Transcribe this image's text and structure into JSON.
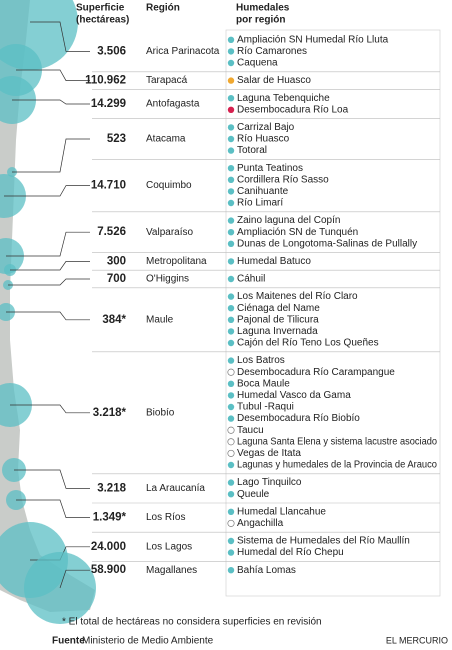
{
  "header": {
    "surface": [
      "Superficie",
      "(hectáreas)"
    ],
    "region": "Región",
    "wetlands": [
      "Humedales",
      "por región"
    ]
  },
  "rows": [
    {
      "surface": "3.506",
      "region": "Arica Parinacota",
      "wetlands": [
        "Ampliación SN Humedal Río Lluta",
        "Río Camarones",
        "Caquena"
      ],
      "bullets": [
        "#5bbfc4",
        "#5bbfc4",
        "#5bbfc4"
      ]
    },
    {
      "surface": "110.962",
      "region": "Tarapacá",
      "wetlands": [
        "Salar de Huasco"
      ],
      "bullets": [
        "#f0a830"
      ]
    },
    {
      "surface": "14.299",
      "region": "Antofagasta",
      "wetlands": [
        "Laguna Tebenquiche",
        "Desembocadura Río Loa"
      ],
      "bullets": [
        "#5bbfc4",
        "#d6204f"
      ]
    },
    {
      "surface": "523",
      "region": "Atacama",
      "wetlands": [
        "Carrizal Bajo",
        "Río Huasco",
        "Totoral"
      ],
      "bullets": [
        "#5bbfc4",
        "#5bbfc4",
        "#5bbfc4"
      ]
    },
    {
      "surface": "14.710",
      "region": "Coquimbo",
      "wetlands": [
        "Punta Teatinos",
        "Cordillera Río Sasso",
        "Canihuante",
        "Río Limarí"
      ],
      "bullets": [
        "#5bbfc4",
        "#5bbfc4",
        "#5bbfc4",
        "#5bbfc4"
      ]
    },
    {
      "surface": "7.526",
      "region": "Valparaíso",
      "wetlands": [
        "Zaino laguna del Copín",
        "Ampliación SN de Tunquén",
        "Dunas de Longotoma-Salinas de Pullally"
      ],
      "bullets": [
        "#5bbfc4",
        "#5bbfc4",
        "#5bbfc4"
      ]
    },
    {
      "surface": "300",
      "region": "Metropolitana",
      "wetlands": [
        "Humedal Batuco"
      ],
      "bullets": [
        "#5bbfc4"
      ]
    },
    {
      "surface": "700",
      "region": "O'Higgins",
      "wetlands": [
        "Cáhuil"
      ],
      "bullets": [
        "#5bbfc4"
      ]
    },
    {
      "surface": "384*",
      "region": "Maule",
      "wetlands": [
        "Los Maitenes del Río Claro",
        "Ciénaga del Name",
        "Pajonal de Tilicura",
        "Laguna Invernada",
        "Cajón del Río Teno Los Queñes"
      ],
      "bullets": [
        "#5bbfc4",
        "#5bbfc4",
        "#5bbfc4",
        "#5bbfc4",
        "#5bbfc4"
      ]
    },
    {
      "surface": "3.218*",
      "region": "Biobío",
      "wetlands": [
        "Los Batros",
        "Desembocadura Río Carampangue",
        "Boca Maule",
        "Humedal Vasco da Gama",
        "Tubul -Raqui",
        "Desembocadura Río Biobío",
        "Taucu",
        "Laguna Santa Elena y sistema lacustre asociado",
        "Vegas de Itata",
        "Lagunas y humedales de la Provincia de Arauco"
      ],
      "bullets": [
        "#5bbfc4",
        "#ffffff",
        "#5bbfc4",
        "#5bbfc4",
        "#5bbfc4",
        "#5bbfc4",
        "#ffffff",
        "#ffffff",
        "#ffffff",
        "#5bbfc4"
      ]
    },
    {
      "surface": "3.218",
      "region": "La Araucanía",
      "wetlands": [
        "Lago Tinquilco",
        "Queule"
      ],
      "bullets": [
        "#5bbfc4",
        "#5bbfc4"
      ]
    },
    {
      "surface": "1.349*",
      "region": "Los Ríos",
      "wetlands": [
        "Humedal Llancahue",
        "Angachilla"
      ],
      "bullets": [
        "#5bbfc4",
        "#ffffff"
      ]
    },
    {
      "surface": "24.000",
      "region": "Los Lagos",
      "wetlands": [
        "Sistema de Humedales del Río Maullín",
        "Humedal del Río Chepu"
      ],
      "bullets": [
        "#5bbfc4",
        "#5bbfc4"
      ]
    },
    {
      "surface": "58.900",
      "region": "Magallanes",
      "wetlands": [
        "Bahía Lomas"
      ],
      "bullets": [
        "#5bbfc4"
      ]
    }
  ],
  "footnote": "* El total de hectáreas no considera superficies en revisión",
  "source_label": "Fuente",
  "source": "Ministerio de Medio Ambiente",
  "publisher": "EL MERCURIO"
}
